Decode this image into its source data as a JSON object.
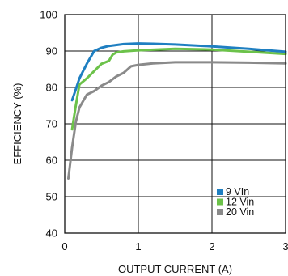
{
  "chart_data": {
    "type": "line",
    "title": "",
    "xlabel": "OUTPUT CURRENT (A)",
    "ylabel": "EFFICIENCY (%)",
    "xlim": [
      0,
      3
    ],
    "ylim": [
      40,
      100
    ],
    "xticks": [
      0,
      1,
      2,
      3
    ],
    "yticks": [
      40,
      50,
      60,
      70,
      80,
      90,
      100
    ],
    "grid": true,
    "legend_position": "bottom-right",
    "series": [
      {
        "name": "9 VIn",
        "color": "#1f7fc1",
        "x": [
          0.1,
          0.15,
          0.2,
          0.3,
          0.4,
          0.5,
          0.6,
          0.8,
          1.0,
          1.2,
          1.5,
          2.0,
          2.5,
          3.0
        ],
        "y": [
          76.5,
          79.5,
          82.5,
          86.5,
          90.0,
          90.9,
          91.4,
          91.9,
          92.1,
          92.0,
          91.8,
          91.3,
          90.6,
          89.8
        ]
      },
      {
        "name": "12 Vin",
        "color": "#6cc24a",
        "x": [
          0.1,
          0.15,
          0.2,
          0.3,
          0.4,
          0.5,
          0.6,
          0.65,
          0.7,
          0.8,
          1.0,
          1.5,
          2.0,
          2.5,
          3.0
        ],
        "y": [
          68.5,
          75.0,
          80.8,
          82.5,
          84.5,
          86.5,
          87.3,
          89.0,
          89.6,
          89.9,
          90.2,
          90.6,
          90.4,
          89.8,
          89.2
        ]
      },
      {
        "name": "20 Vin",
        "color": "#8a8a8a",
        "x": [
          0.05,
          0.1,
          0.15,
          0.2,
          0.3,
          0.4,
          0.5,
          0.6,
          0.7,
          0.8,
          0.9,
          1.0,
          1.2,
          1.5,
          2.0,
          2.5,
          3.0
        ],
        "y": [
          55.0,
          63.5,
          70.5,
          74.5,
          78.0,
          79.0,
          80.5,
          81.5,
          83.0,
          84.0,
          85.8,
          86.2,
          86.6,
          86.9,
          86.9,
          86.8,
          86.6
        ]
      }
    ]
  }
}
